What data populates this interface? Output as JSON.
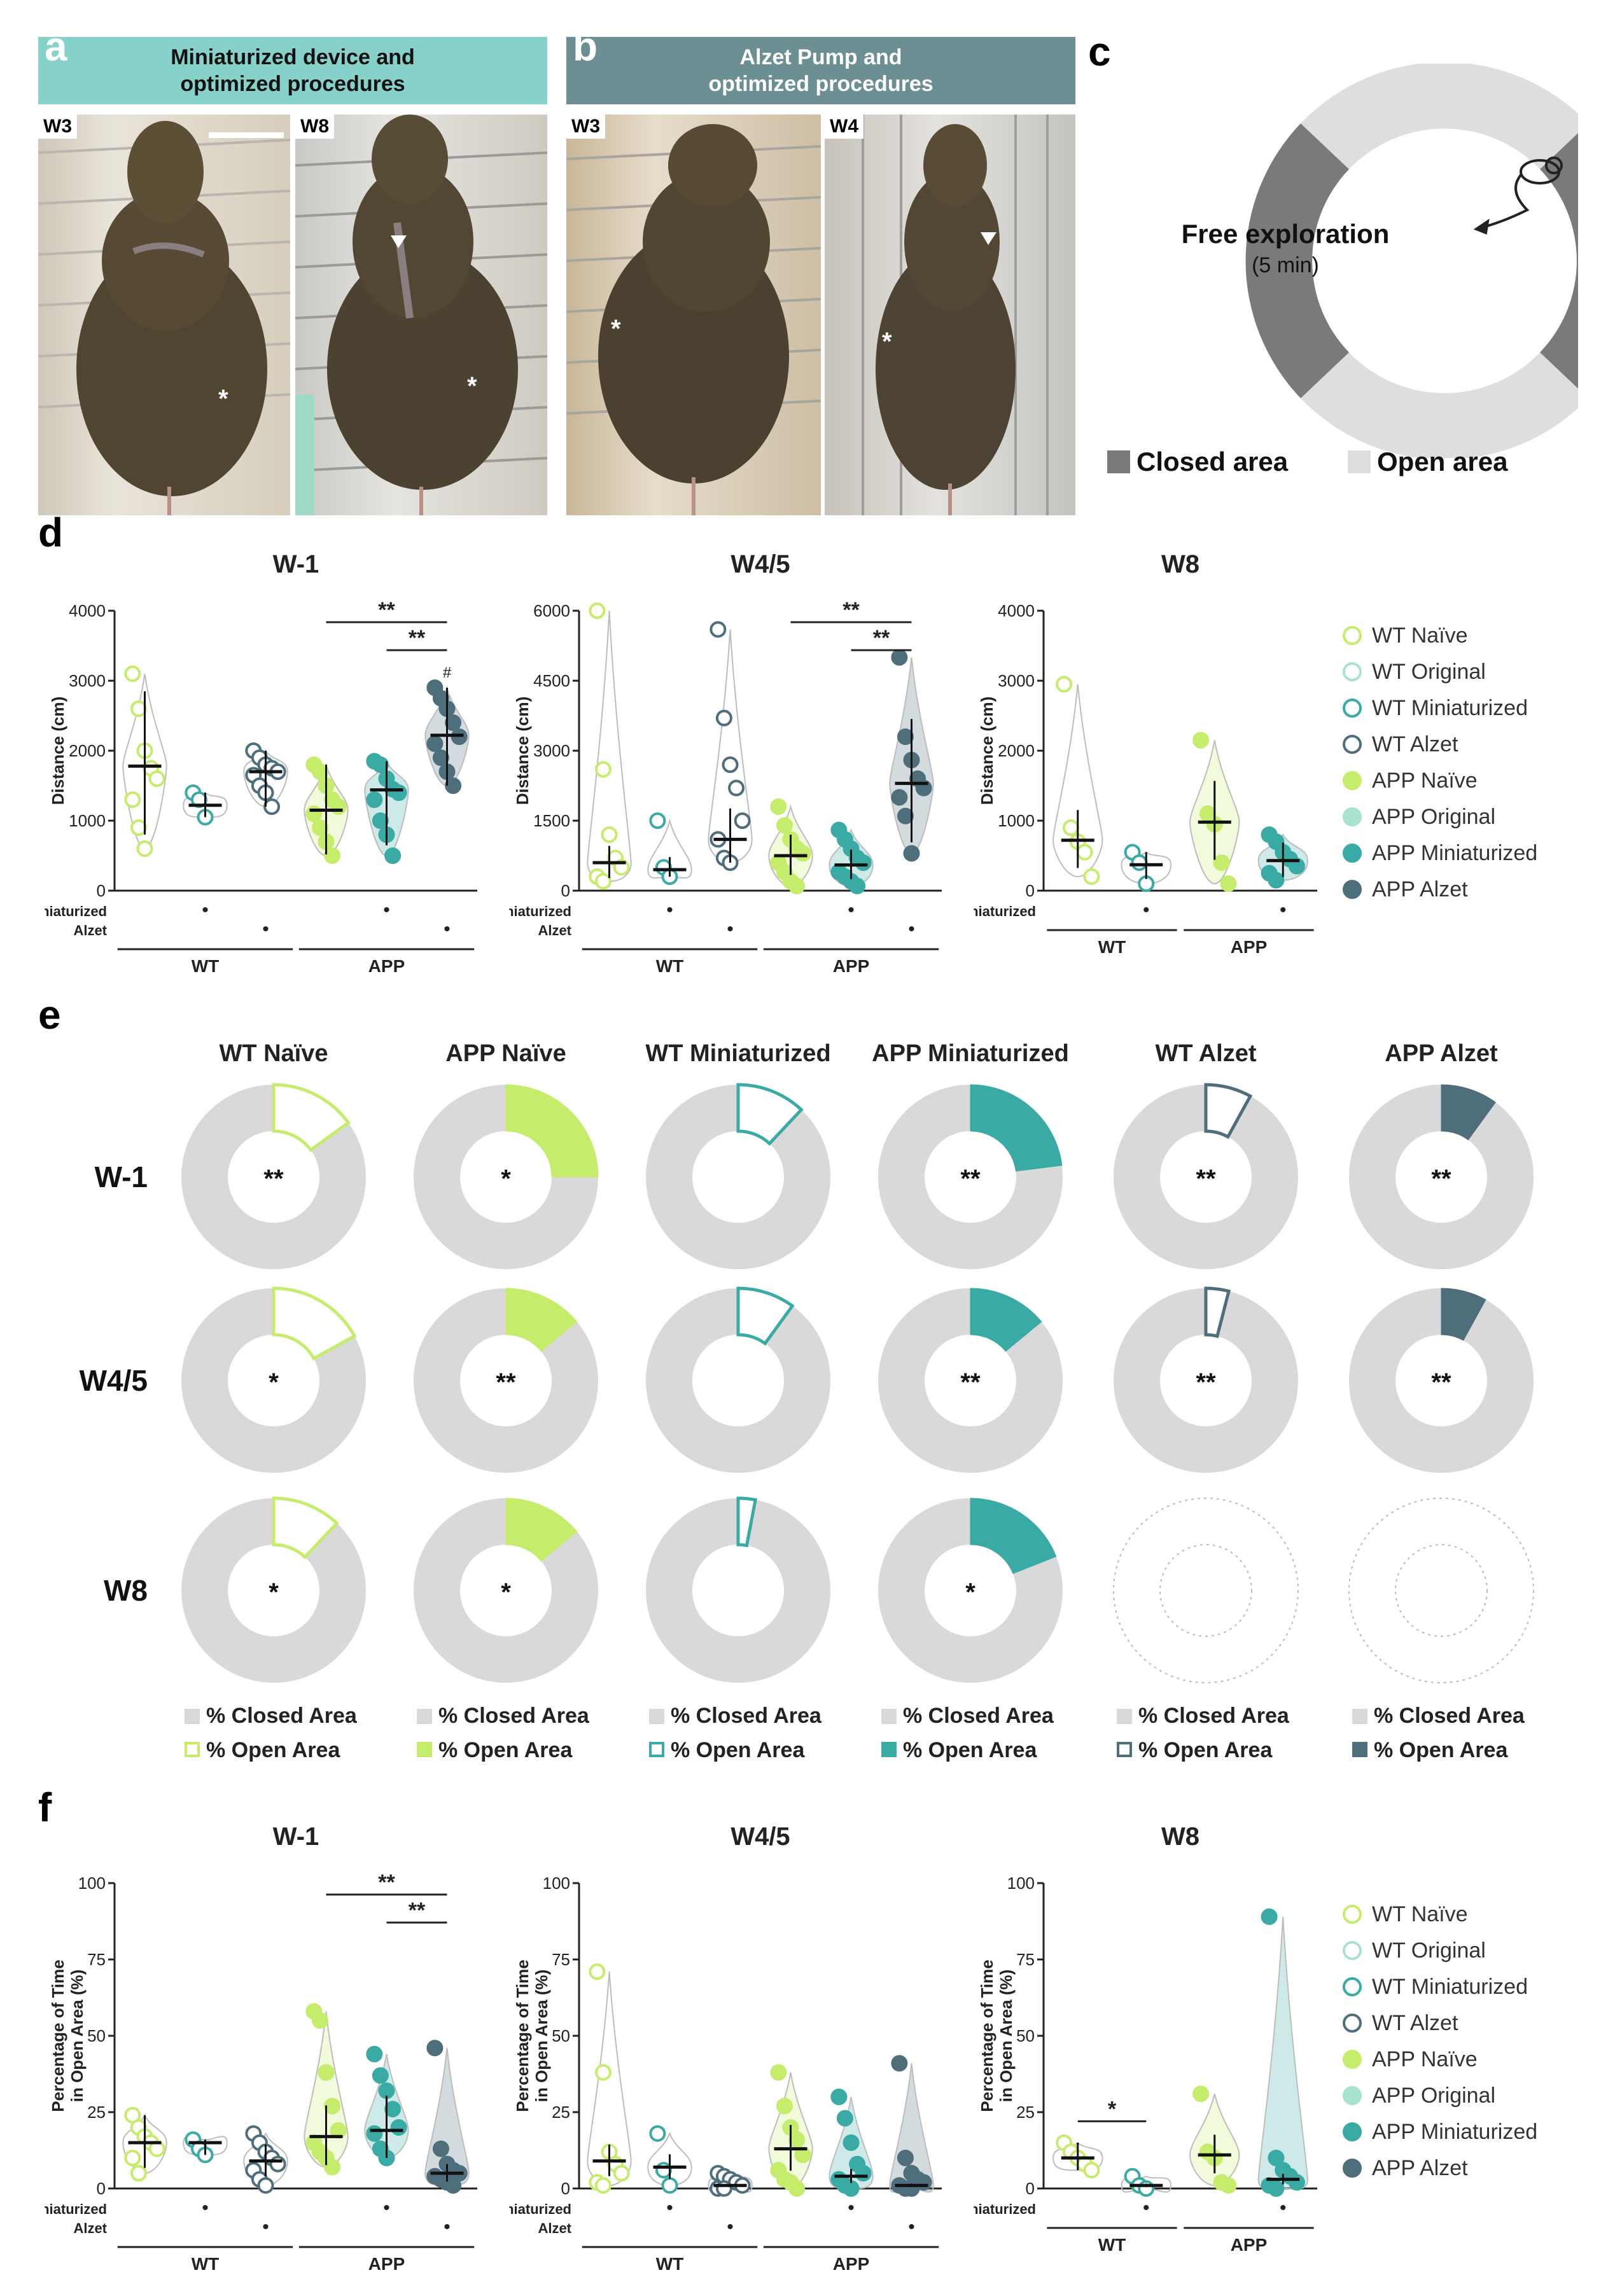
{
  "colors": {
    "wt_naive": "#c6ec6c",
    "app_naive": "#c6ec6c",
    "wt_original": "#a8e3cf",
    "app_original": "#a8e3cf",
    "wt_mini": "#3aaaa5",
    "app_mini": "#3aaaa5",
    "wt_alzet": "#4e6e7b",
    "app_alzet": "#4e6e7b",
    "closed": "#d9d9d9",
    "banner_a": "#86d1c9",
    "banner_b": "#6b8f93"
  },
  "panel_a": {
    "letter": "a",
    "banner_line1": "Miniaturized device and",
    "banner_line2": "optimized procedures",
    "w_left": "W3",
    "w_right": "W8"
  },
  "panel_b": {
    "letter": "b",
    "banner_line1": "Alzet Pump and",
    "banner_line2": "optimized procedures",
    "w_left": "W3",
    "w_right": "W4"
  },
  "panel_c": {
    "letter": "c",
    "center_title": "Free exploration",
    "center_sub": "(5 min)",
    "legend_closed": "Closed area",
    "legend_open": "Open area"
  },
  "panel_d": {
    "letter": "d"
  },
  "panel_e": {
    "letter": "e"
  },
  "panel_f": {
    "letter": "f"
  },
  "legend_groups": [
    "WT Naïve",
    "WT Original",
    "WT Miniaturized",
    "WT Alzet",
    "APP Naïve",
    "APP Original",
    "APP Miniaturized",
    "APP Alzet"
  ],
  "factor_labels": {
    "mini": "Miniaturized",
    "alzet": "Alzet",
    "wt": "WT",
    "app": "APP",
    "dot": "•"
  },
  "chart_data": [
    {
      "id": "d_w-1",
      "type": "violin",
      "title": "W-1",
      "ylabel": "Distance (cm)",
      "ylim": [
        0,
        4000
      ],
      "yticks": [
        "0",
        "1000",
        "2000",
        "3000",
        "4000"
      ],
      "groups": [
        "WT Naïve",
        "WT Miniaturized",
        "WT Alzet",
        "APP Naïve",
        "APP Miniaturized",
        "APP Alzet"
      ],
      "medians": [
        1780,
        1220,
        1700,
        1150,
        1440,
        2220
      ],
      "points": [
        [
          3100,
          2600,
          2000,
          1750,
          1600,
          1300,
          900,
          600
        ],
        [
          1400,
          1300,
          1050
        ],
        [
          2000,
          1900,
          1800,
          1750,
          1700,
          1650,
          1500,
          1400,
          1200
        ],
        [
          1800,
          1700,
          1500,
          1300,
          1200,
          1100,
          900,
          700,
          500
        ],
        [
          1850,
          1800,
          1600,
          1450,
          1400,
          1300,
          1000,
          800,
          500
        ],
        [
          2900,
          2750,
          2600,
          2400,
          2200,
          2100,
          1900,
          1700,
          1500
        ]
      ],
      "annotations": [
        "**",
        "**",
        "#"
      ]
    },
    {
      "id": "d_w4/5",
      "type": "violin",
      "title": "W4/5",
      "ylabel": "Distance (cm)",
      "ylim": [
        0,
        6000
      ],
      "yticks": [
        "0",
        "1500",
        "3000",
        "4500",
        "6000"
      ],
      "groups": [
        "WT Naïve",
        "WT Miniaturized",
        "WT Alzet",
        "APP Naïve",
        "APP Miniaturized",
        "APP Alzet"
      ],
      "medians": [
        600,
        450,
        1100,
        750,
        550,
        2300
      ],
      "points": [
        [
          6000,
          2600,
          1200,
          700,
          500,
          300,
          200
        ],
        [
          1500,
          500,
          300
        ],
        [
          5600,
          3700,
          2700,
          2200,
          1500,
          1100,
          700,
          600
        ],
        [
          1800,
          1400,
          1100,
          900,
          800,
          600,
          400,
          200,
          100
        ],
        [
          1300,
          1100,
          900,
          700,
          600,
          400,
          300,
          200,
          100
        ],
        [
          5000,
          3300,
          2800,
          2400,
          2200,
          2000,
          1600,
          800
        ]
      ],
      "annotations": [
        "**",
        "**"
      ]
    },
    {
      "id": "d_w8",
      "type": "violin",
      "title": "W8",
      "ylabel": "Distance (cm)",
      "ylim": [
        0,
        4000
      ],
      "yticks": [
        "0",
        "1000",
        "2000",
        "3000",
        "4000"
      ],
      "groups": [
        "WT Naïve",
        "WT Miniaturized",
        "APP Naïve",
        "APP Miniaturized"
      ],
      "medians": [
        720,
        370,
        980,
        430
      ],
      "points": [
        [
          2950,
          900,
          700,
          550,
          200
        ],
        [
          550,
          400,
          100
        ],
        [
          2150,
          1100,
          950,
          400,
          100
        ],
        [
          800,
          700,
          550,
          450,
          350,
          250,
          150
        ]
      ],
      "annotations": []
    },
    {
      "id": "f_w-1",
      "type": "violin",
      "title": "W-1",
      "ylabel": "Percentage of Time in Open Area (%)",
      "ylim": [
        0,
        100
      ],
      "yticks": [
        "0",
        "25",
        "50",
        "75",
        "100"
      ],
      "groups": [
        "WT Naïve",
        "WT Miniaturized",
        "WT Alzet",
        "APP Naïve",
        "APP Miniaturized",
        "APP Alzet"
      ],
      "medians": [
        15,
        15,
        9,
        17,
        19,
        5
      ],
      "points": [
        [
          24,
          20,
          17,
          15,
          13,
          10,
          5
        ],
        [
          16,
          13,
          11
        ],
        [
          18,
          15,
          12,
          10,
          8,
          6,
          3,
          1
        ],
        [
          58,
          55,
          38,
          27,
          19,
          15,
          12,
          10,
          7
        ],
        [
          44,
          37,
          32,
          26,
          20,
          18,
          13,
          10
        ],
        [
          46,
          13,
          8,
          6,
          5,
          4,
          3,
          2,
          1
        ]
      ],
      "annotations": [
        "**",
        "**"
      ]
    },
    {
      "id": "f_w4/5",
      "type": "violin",
      "title": "W4/5",
      "ylabel": "Percentage of Time in Open Area (%)",
      "ylim": [
        0,
        100
      ],
      "yticks": [
        "0",
        "25",
        "50",
        "75",
        "100"
      ],
      "groups": [
        "WT Naïve",
        "WT Miniaturized",
        "WT Alzet",
        "APP Naïve",
        "APP Miniaturized",
        "APP Alzet"
      ],
      "medians": [
        9,
        7,
        1,
        13,
        4,
        1
      ],
      "points": [
        [
          71,
          38,
          12,
          8,
          5,
          2,
          1
        ],
        [
          18,
          6,
          1
        ],
        [
          5,
          4,
          3,
          2,
          1,
          0,
          0
        ],
        [
          38,
          27,
          20,
          16,
          11,
          6,
          3,
          2,
          0
        ],
        [
          30,
          23,
          15,
          8,
          5,
          3,
          1,
          0
        ],
        [
          41,
          10,
          5,
          3,
          2,
          1,
          0,
          0
        ]
      ],
      "annotations": []
    },
    {
      "id": "f_w8",
      "type": "violin",
      "title": "W8",
      "ylabel": "Percentage of Time in Open Area (%)",
      "ylim": [
        0,
        100
      ],
      "yticks": [
        "0",
        "25",
        "50",
        "75",
        "100"
      ],
      "groups": [
        "WT Naïve",
        "WT Miniaturized",
        "APP Naïve",
        "APP Miniaturized"
      ],
      "medians": [
        10,
        1,
        11,
        3
      ],
      "points": [
        [
          15,
          12,
          10,
          8,
          6
        ],
        [
          4,
          1,
          0
        ],
        [
          31,
          12,
          10,
          2,
          1
        ],
        [
          89,
          10,
          6,
          4,
          2,
          1,
          0
        ]
      ],
      "annotations": [
        "*"
      ]
    },
    {
      "id": "e_donuts",
      "type": "pie",
      "columns": [
        "WT Naïve",
        "APP Naïve",
        "WT Miniaturized",
        "APP Miniaturized",
        "WT Alzet",
        "APP Alzet"
      ],
      "rows": [
        "W-1",
        "W4/5",
        "W8"
      ],
      "open_area_percent": [
        [
          15,
          25,
          12,
          23,
          8,
          10
        ],
        [
          17,
          14,
          10,
          14,
          4,
          8
        ],
        [
          12,
          14,
          3,
          19,
          null,
          null
        ]
      ],
      "significance": [
        [
          "**",
          "*",
          "",
          "**",
          "**",
          "**"
        ],
        [
          "*",
          "**",
          "",
          "**",
          "**",
          "**"
        ],
        [
          "*",
          "*",
          "",
          "*",
          "",
          ""
        ]
      ],
      "legend_closed": "% Closed Area",
      "legend_open": "% Open Area"
    }
  ]
}
